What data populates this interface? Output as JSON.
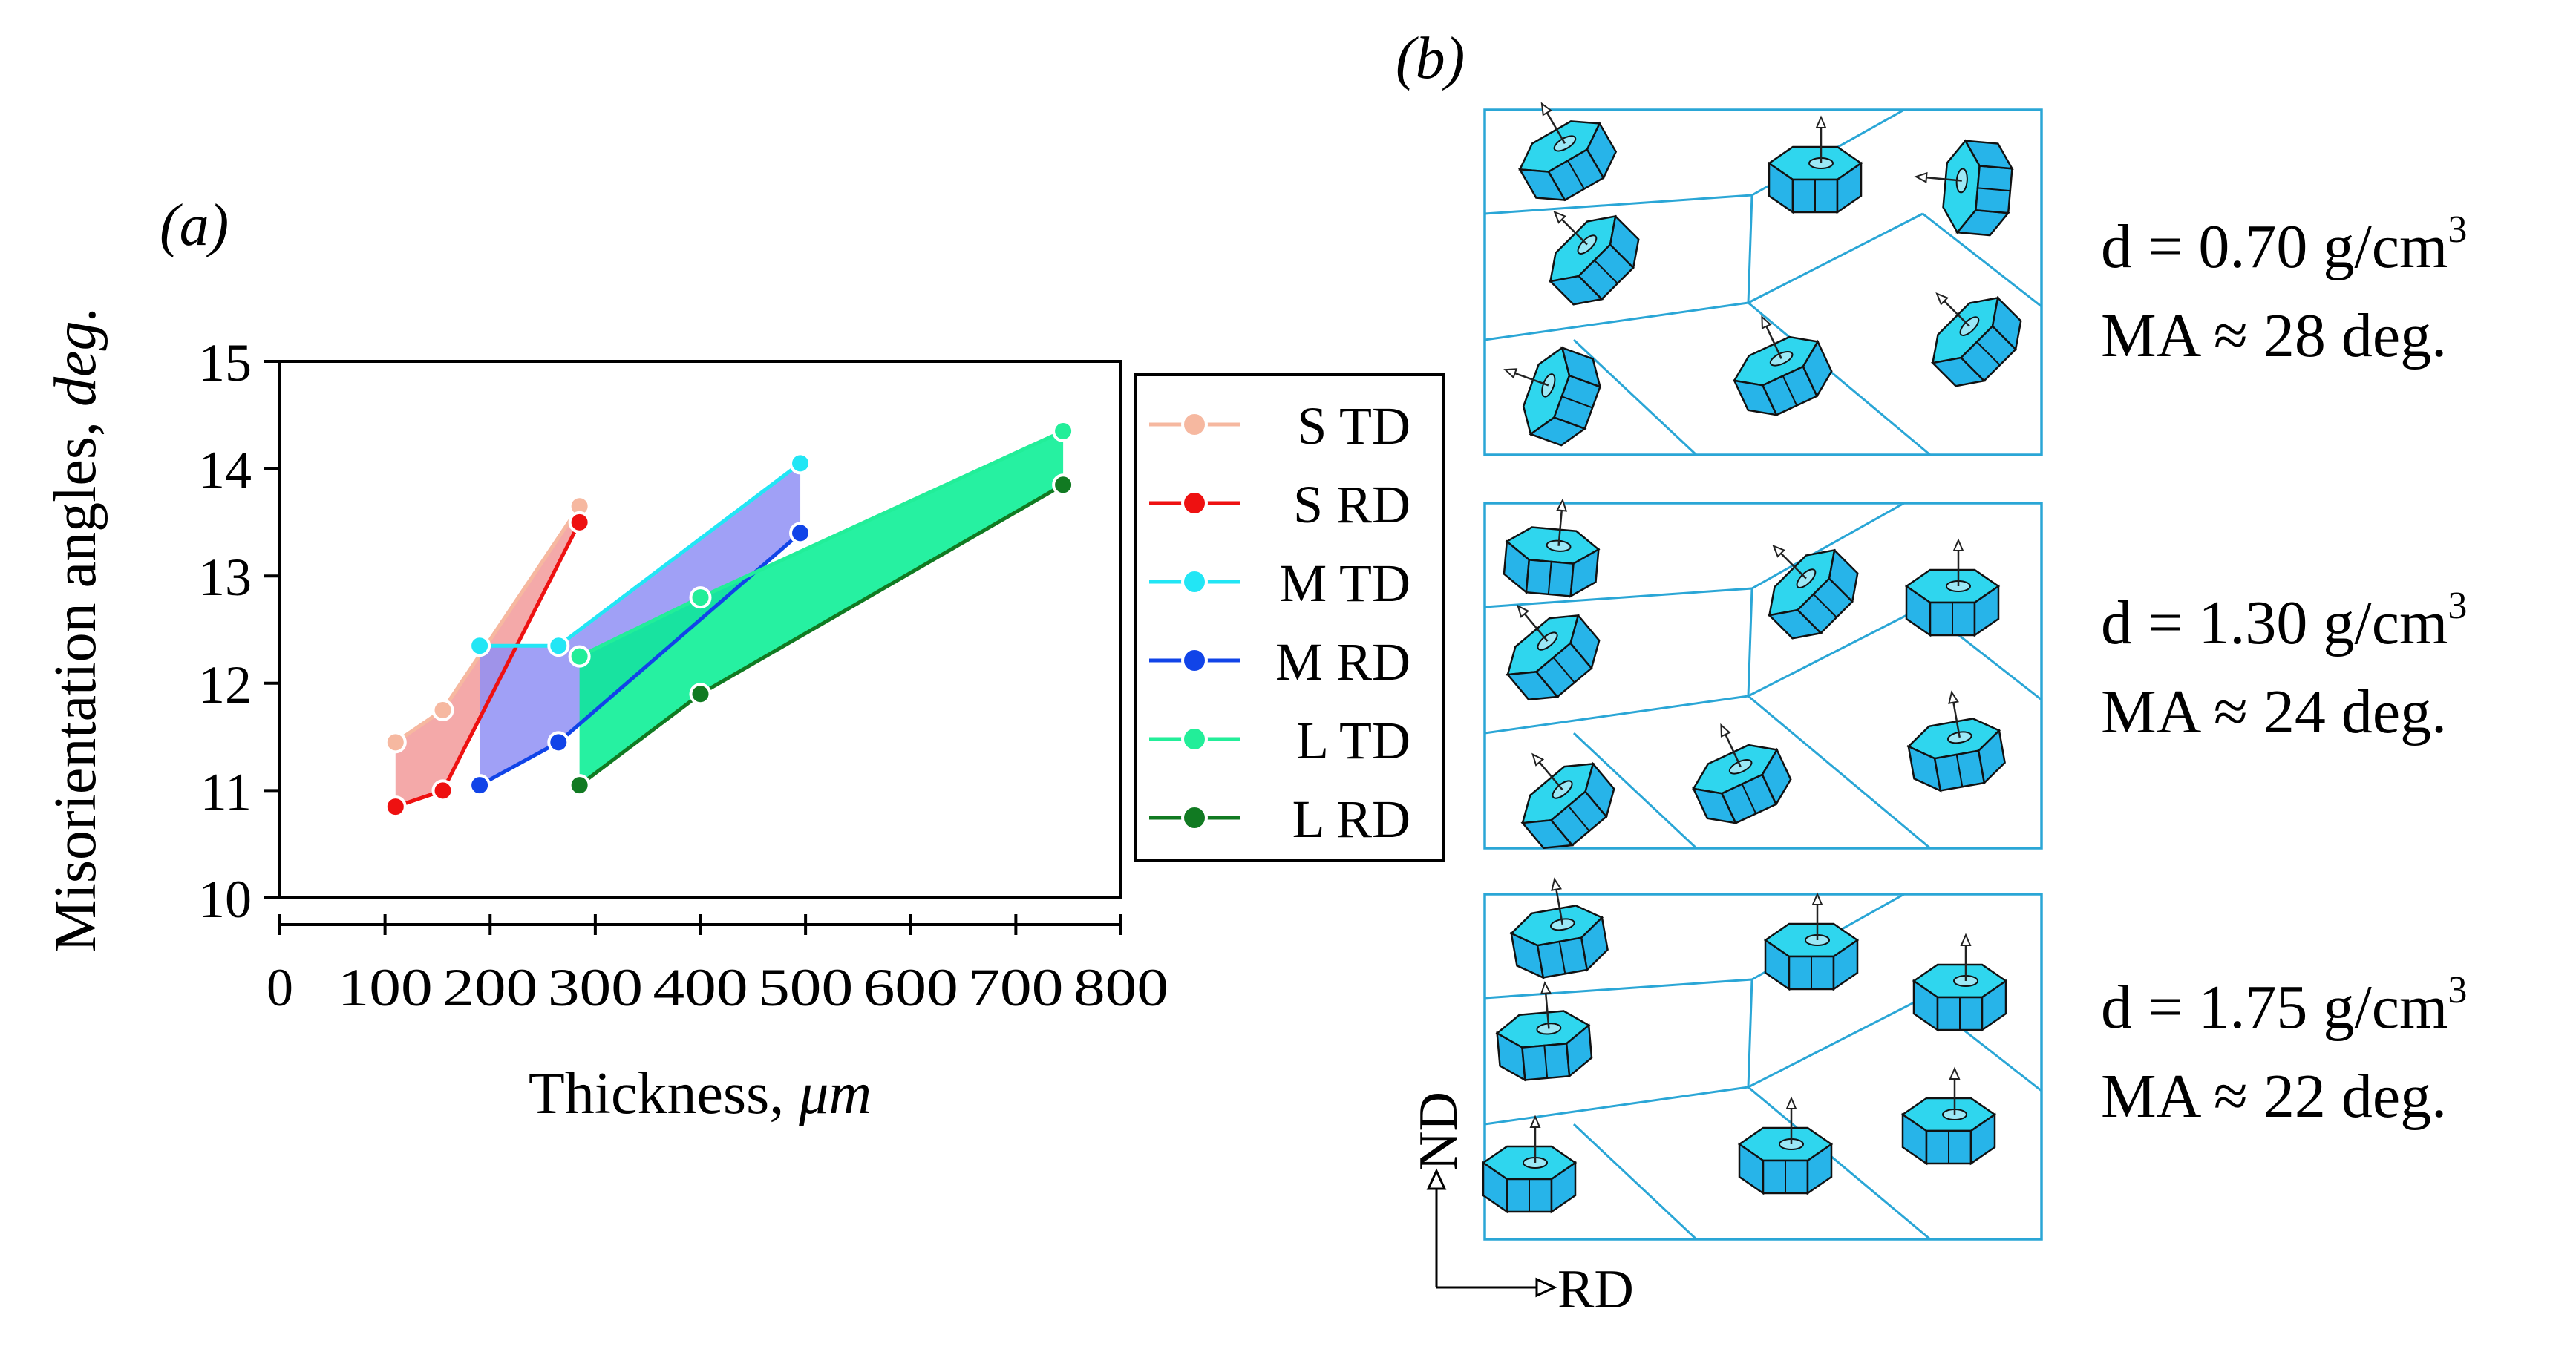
{
  "panel_a": {
    "label": "(a)"
  },
  "panel_b": {
    "label": "(b)"
  },
  "chart_data": {
    "type": "line",
    "title": "",
    "xlabel": "Thickness, ",
    "xlabel_unit": "μm",
    "ylabel": "Misorientation angles, ",
    "ylabel_unit": "deg.",
    "xlim": [
      0,
      800
    ],
    "ylim": [
      10,
      15
    ],
    "xticks": [
      0,
      100,
      200,
      300,
      400,
      500,
      600,
      700,
      800
    ],
    "yticks": [
      10,
      11,
      12,
      13,
      14,
      15
    ],
    "legend_position": "right",
    "series": [
      {
        "name": "S TD",
        "color": "#f6b8a0",
        "x": [
          110,
          155,
          285
        ],
        "y": [
          11.45,
          11.75,
          13.65
        ]
      },
      {
        "name": "S RD",
        "color": "#ee1111",
        "x": [
          110,
          155,
          285
        ],
        "y": [
          10.85,
          11.0,
          13.5
        ]
      },
      {
        "name": "M TD",
        "color": "#22e6f5",
        "x": [
          190,
          265,
          495
        ],
        "y": [
          12.35,
          12.35,
          14.05
        ]
      },
      {
        "name": "M RD",
        "color": "#1144e8",
        "x": [
          190,
          265,
          495
        ],
        "y": [
          11.05,
          11.45,
          13.4
        ]
      },
      {
        "name": "L TD",
        "color": "#22ee99",
        "x": [
          285,
          400,
          745
        ],
        "y": [
          12.25,
          12.8,
          14.35
        ]
      },
      {
        "name": "L RD",
        "color": "#117a22",
        "x": [
          285,
          400,
          745
        ],
        "y": [
          11.05,
          11.9,
          13.85
        ]
      }
    ],
    "bands": [
      {
        "name": "S band",
        "color": "#f29a9a",
        "upper": "S TD",
        "lower": "S RD"
      },
      {
        "name": "M band",
        "color": "#8f8ff5",
        "upper": "M TD",
        "lower": "M RD"
      },
      {
        "name": "L band",
        "color": "#00ee90",
        "upper": "L TD",
        "lower": "L RD"
      }
    ]
  },
  "microstructures": [
    {
      "density_prefix": "d = 1.30 g/cm",
      "density_exp": "3",
      "ma": "MA ≈ 24 deg."
    },
    {
      "density_prefix": "d = 0.70 g/cm",
      "density_exp": "3",
      "ma": "MA ≈ 28 deg."
    },
    {
      "density_prefix": "d = 1.75 g/cm",
      "density_exp": "3",
      "ma": "MA ≈ 22 deg."
    }
  ],
  "axes_indicator": {
    "vertical": "ND",
    "horizontal": "RD"
  },
  "colors": {
    "grain_line": "#2aa6d6",
    "crystal_fill": "#27b4e9",
    "crystal_top": "#2fd6ee",
    "axis": "#000000"
  }
}
